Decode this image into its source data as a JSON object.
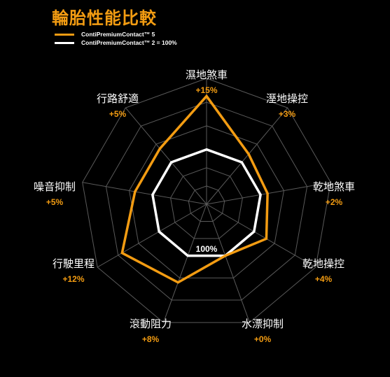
{
  "title": "輪胎性能比較",
  "colors": {
    "accent": "#f39c12",
    "baseline": "#ffffff",
    "grid": "#5a5a5a",
    "background": "#000000"
  },
  "chart_data": {
    "type": "radar",
    "axes": [
      {
        "label": "濕地煞車",
        "delta": "+15%"
      },
      {
        "label": "溼地操控",
        "delta": "+3%"
      },
      {
        "label": "乾地煞車",
        "delta": "+2%"
      },
      {
        "label": "乾地操控",
        "delta": "+4%"
      },
      {
        "label": "水漂抑制",
        "delta": "+0%"
      },
      {
        "label": "滾動阻力",
        "delta": "+8%"
      },
      {
        "label": "行駛里程",
        "delta": "+12%"
      },
      {
        "label": "噪音抑制",
        "delta": "+5%"
      },
      {
        "label": "行路舒適",
        "delta": "+5%"
      }
    ],
    "series": [
      {
        "name": "ContiPremiumContact™ 5",
        "color": "#f39c12",
        "values": [
          115,
          103,
          102,
          104,
          100,
          108,
          112,
          105,
          105
        ]
      },
      {
        "name": "ContiPremiumContact™ 2 = 100%",
        "color": "#ffffff",
        "values": [
          100,
          100,
          100,
          100,
          100,
          100,
          100,
          100,
          100
        ]
      }
    ],
    "baseline_label": "100%",
    "grid": true
  }
}
